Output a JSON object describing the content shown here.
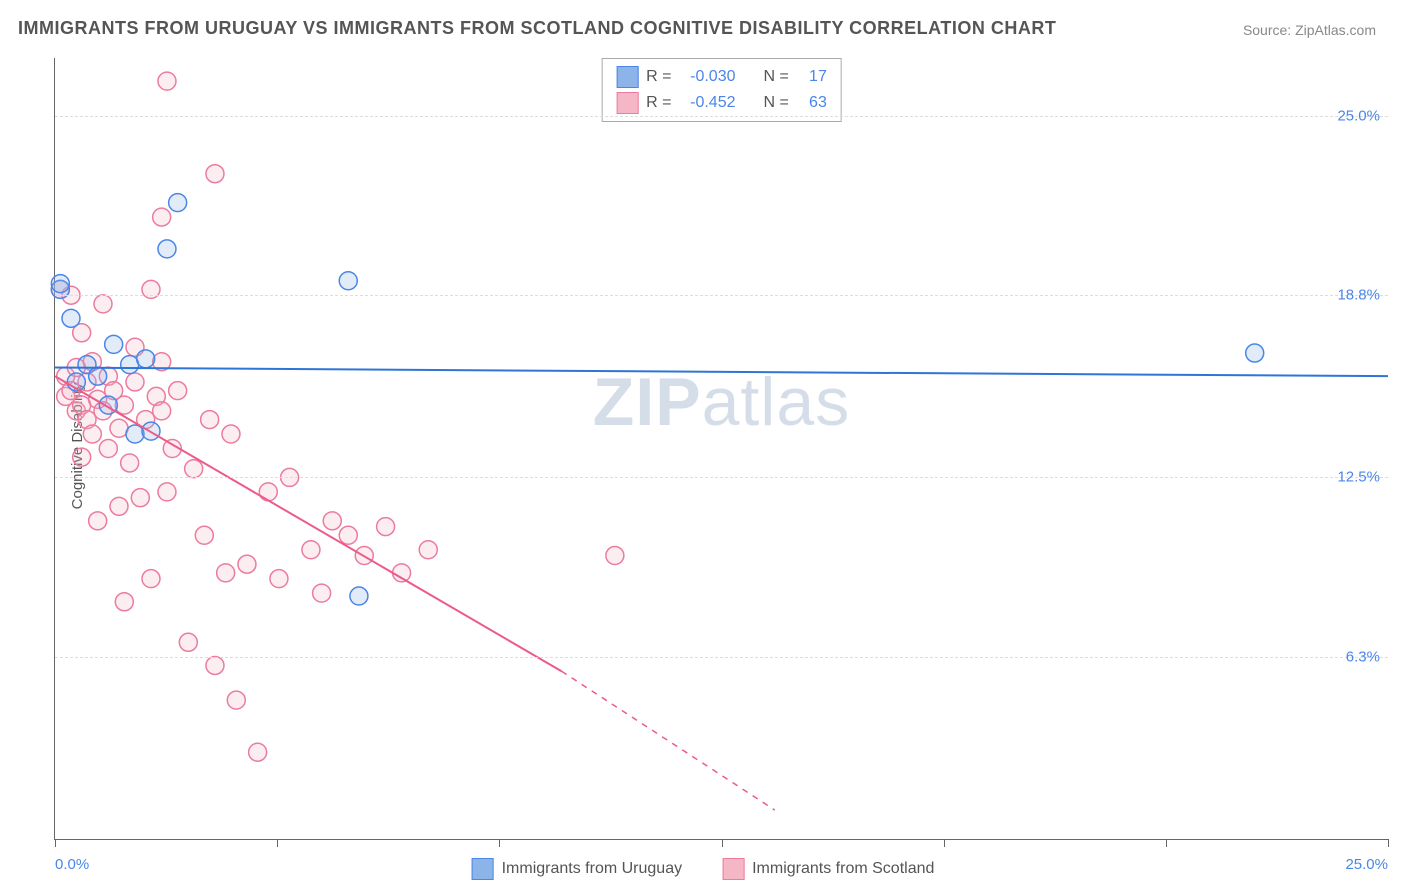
{
  "title": "IMMIGRANTS FROM URUGUAY VS IMMIGRANTS FROM SCOTLAND COGNITIVE DISABILITY CORRELATION CHART",
  "source": "Source: ZipAtlas.com",
  "y_axis_label": "Cognitive Disability",
  "watermark_bold": "ZIP",
  "watermark_light": "atlas",
  "chart": {
    "type": "scatter",
    "xlim": [
      0,
      25
    ],
    "ylim": [
      0,
      27
    ],
    "x_ticks": [
      0,
      4.17,
      8.33,
      12.5,
      16.67,
      20.83,
      25
    ],
    "x_tick_labels": {
      "0": "0.0%",
      "25": "25.0%"
    },
    "y_gridlines": [
      6.3,
      12.5,
      18.8,
      25.0
    ],
    "y_tick_labels": [
      "6.3%",
      "12.5%",
      "18.8%",
      "25.0%"
    ],
    "background_color": "#ffffff",
    "grid_color": "#dddddd",
    "marker_radius": 9,
    "marker_fill_opacity": 0.25,
    "marker_stroke_width": 1.5,
    "line_width": 2
  },
  "series": [
    {
      "name": "Immigrants from Uruguay",
      "color": "#8db4e8",
      "stroke": "#4a86e8",
      "line_color": "#2e75d6",
      "r_label": "R =",
      "r_value": "-0.030",
      "n_label": "N =",
      "n_value": "17",
      "trend": {
        "x1": 0,
        "y1": 16.3,
        "x2": 25,
        "y2": 16.0
      },
      "points": [
        [
          0.1,
          19.0
        ],
        [
          0.1,
          19.2
        ],
        [
          0.3,
          18.0
        ],
        [
          0.6,
          16.4
        ],
        [
          1.1,
          17.1
        ],
        [
          1.4,
          16.4
        ],
        [
          1.5,
          14.0
        ],
        [
          1.7,
          16.6
        ],
        [
          1.8,
          14.1
        ],
        [
          2.1,
          20.4
        ],
        [
          2.3,
          22.0
        ],
        [
          5.5,
          19.3
        ],
        [
          5.7,
          8.4
        ],
        [
          22.5,
          16.8
        ],
        [
          1.0,
          15.0
        ],
        [
          0.4,
          15.8
        ],
        [
          0.8,
          16.0
        ]
      ]
    },
    {
      "name": "Immigrants from Scotland",
      "color": "#f5b6c6",
      "stroke": "#ec7ba0",
      "line_color": "#ec5b8a",
      "r_label": "R =",
      "r_value": "-0.452",
      "n_label": "N =",
      "n_value": "63",
      "trend": {
        "x1": 0,
        "y1": 16.0,
        "x2": 9.5,
        "y2": 5.8
      },
      "trend_dash": {
        "x1": 9.5,
        "y1": 5.8,
        "x2": 13.5,
        "y2": 1.0
      },
      "points": [
        [
          0.2,
          15.3
        ],
        [
          0.2,
          16.0
        ],
        [
          0.3,
          15.5
        ],
        [
          0.3,
          18.8
        ],
        [
          0.4,
          14.8
        ],
        [
          0.4,
          16.3
        ],
        [
          0.5,
          13.2
        ],
        [
          0.5,
          15.0
        ],
        [
          0.5,
          17.5
        ],
        [
          0.6,
          14.5
        ],
        [
          0.6,
          15.8
        ],
        [
          0.7,
          14.0
        ],
        [
          0.7,
          16.5
        ],
        [
          0.8,
          11.0
        ],
        [
          0.8,
          15.2
        ],
        [
          0.9,
          14.8
        ],
        [
          0.9,
          18.5
        ],
        [
          1.0,
          13.5
        ],
        [
          1.0,
          16.0
        ],
        [
          1.1,
          15.5
        ],
        [
          1.2,
          11.5
        ],
        [
          1.2,
          14.2
        ],
        [
          1.3,
          15.0
        ],
        [
          1.4,
          13.0
        ],
        [
          1.5,
          15.8
        ],
        [
          1.5,
          17.0
        ],
        [
          1.6,
          11.8
        ],
        [
          1.7,
          14.5
        ],
        [
          1.8,
          9.0
        ],
        [
          1.8,
          19.0
        ],
        [
          1.9,
          15.3
        ],
        [
          2.0,
          14.8
        ],
        [
          2.0,
          21.5
        ],
        [
          2.1,
          12.0
        ],
        [
          2.1,
          26.2
        ],
        [
          2.2,
          13.5
        ],
        [
          2.3,
          15.5
        ],
        [
          2.5,
          6.8
        ],
        [
          2.6,
          12.8
        ],
        [
          2.8,
          10.5
        ],
        [
          2.9,
          14.5
        ],
        [
          3.0,
          23.0
        ],
        [
          3.0,
          6.0
        ],
        [
          3.2,
          9.2
        ],
        [
          3.3,
          14.0
        ],
        [
          3.4,
          4.8
        ],
        [
          3.6,
          9.5
        ],
        [
          3.8,
          3.0
        ],
        [
          4.0,
          12.0
        ],
        [
          4.2,
          9.0
        ],
        [
          4.4,
          12.5
        ],
        [
          4.8,
          10.0
        ],
        [
          5.0,
          8.5
        ],
        [
          5.2,
          11.0
        ],
        [
          5.5,
          10.5
        ],
        [
          5.8,
          9.8
        ],
        [
          6.2,
          10.8
        ],
        [
          6.5,
          9.2
        ],
        [
          7.0,
          10.0
        ],
        [
          10.5,
          9.8
        ],
        [
          0.1,
          19.0
        ],
        [
          1.3,
          8.2
        ],
        [
          2.0,
          16.5
        ]
      ]
    }
  ]
}
